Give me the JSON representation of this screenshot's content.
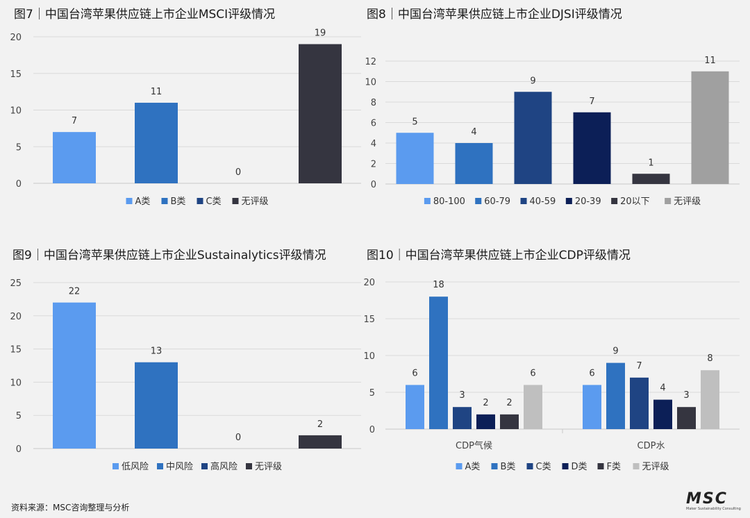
{
  "colors": {
    "light_blue": "#5b9bef",
    "mid_blue": "#2f72c0",
    "dark_blue": "#1f4483",
    "navy": "#0c1f57",
    "charcoal": "#353540",
    "gray": "#a0a0a0",
    "light_gray": "#bfbfbf"
  },
  "chart_data": [
    {
      "id": "fig7",
      "type": "bar",
      "title": "图7｜中国台湾苹果供应链上市企业MSCI评级情况",
      "categories": [
        "A类",
        "B类",
        "C类",
        "无评级"
      ],
      "values": [
        7,
        11,
        0,
        19
      ],
      "colors": [
        "#5b9bef",
        "#2f72c0",
        "#1f4483",
        "#353540"
      ],
      "ylim": [
        0,
        20
      ],
      "yticks": [
        0,
        5,
        10,
        15,
        20
      ],
      "grid": true,
      "legend": "bottom"
    },
    {
      "id": "fig8",
      "type": "bar",
      "title": "图8｜中国台湾苹果供应链上市企业DJSI评级情况",
      "categories": [
        "80-100",
        "60-79",
        "40-59",
        "20-39",
        "20以下",
        "无评级"
      ],
      "values": [
        5,
        4,
        9,
        7,
        1,
        11
      ],
      "colors": [
        "#5b9bef",
        "#2f72c0",
        "#1f4483",
        "#0c1f57",
        "#353540",
        "#a0a0a0"
      ],
      "ylim": [
        0,
        12
      ],
      "yticks": [
        0,
        2,
        4,
        6,
        8,
        10,
        12
      ],
      "grid": true,
      "legend": "bottom"
    },
    {
      "id": "fig9",
      "type": "bar",
      "title": "图9｜中国台湾苹果供应链上市企业Sustainalytics评级情况",
      "categories": [
        "低风险",
        "中风险",
        "高风险",
        "无评级"
      ],
      "values": [
        22,
        13,
        0,
        2
      ],
      "colors": [
        "#5b9bef",
        "#2f72c0",
        "#1f4483",
        "#353540"
      ],
      "ylim": [
        0,
        25
      ],
      "yticks": [
        0,
        5,
        10,
        15,
        20,
        25
      ],
      "grid": true,
      "legend": "bottom"
    },
    {
      "id": "fig10",
      "type": "bar",
      "title": "图10｜中国台湾苹果供应链上市企业CDP评级情况",
      "categories": [
        "CDP气候",
        "CDP水"
      ],
      "series": [
        {
          "name": "A类",
          "values": [
            6,
            6
          ],
          "color": "#5b9bef"
        },
        {
          "name": "B类",
          "values": [
            18,
            9
          ],
          "color": "#2f72c0"
        },
        {
          "name": "C类",
          "values": [
            3,
            7
          ],
          "color": "#1f4483"
        },
        {
          "name": "D类",
          "values": [
            2,
            4
          ],
          "color": "#0c1f57"
        },
        {
          "name": "F类",
          "values": [
            2,
            3
          ],
          "color": "#353540"
        },
        {
          "name": "无评级",
          "values": [
            6,
            8
          ],
          "color": "#bfbfbf"
        }
      ],
      "ylim": [
        0,
        20
      ],
      "yticks": [
        0,
        5,
        10,
        15,
        20
      ],
      "grid": true,
      "legend": "bottom"
    }
  ],
  "footer": {
    "source": "资料来源：MSC咨询整理与分析",
    "logo_text": "MSC",
    "logo_tagline": "Maker Sustainability Consulting"
  }
}
